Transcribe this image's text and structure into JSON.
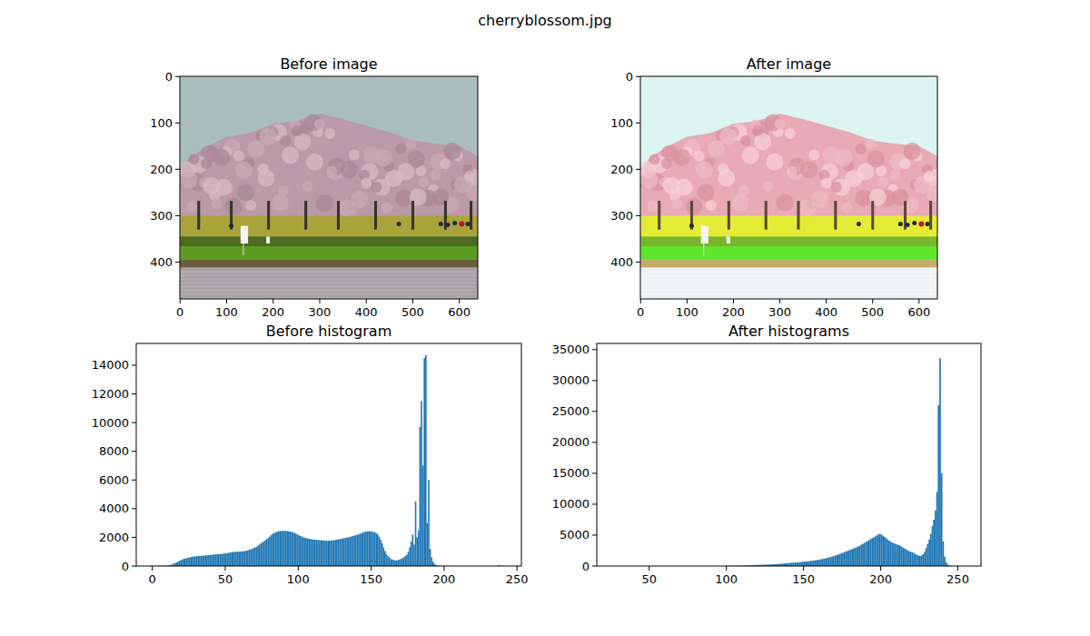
{
  "title": "cherryblossom.jpg",
  "chart_data": [
    {
      "type": "image",
      "title": "Before image",
      "xlim": [
        -0.5,
        639.5
      ],
      "ylim": [
        479.5,
        -0.5
      ],
      "xticks": [
        0,
        100,
        200,
        300,
        400,
        500,
        600
      ],
      "yticks": [
        0,
        100,
        200,
        300,
        400
      ]
    },
    {
      "type": "image",
      "title": "After image",
      "xlim": [
        -0.5,
        639.5
      ],
      "ylim": [
        479.5,
        -0.5
      ],
      "xticks": [
        0,
        100,
        200,
        300,
        400,
        500,
        600
      ],
      "yticks": [
        0,
        100,
        200,
        300,
        400
      ]
    },
    {
      "type": "histogram",
      "title": "Before histogram",
      "color": "#1f77b4",
      "xlim": [
        -11,
        253
      ],
      "ylim": [
        0,
        15520
      ],
      "xticks": [
        0,
        50,
        100,
        150,
        200,
        250
      ],
      "yticks": [
        0,
        2000,
        4000,
        6000,
        8000,
        10000,
        12000,
        14000
      ],
      "bins": [
        0,
        1,
        2,
        3,
        4,
        5,
        6,
        7,
        8,
        9,
        10,
        11,
        12,
        13,
        14,
        15,
        16,
        17,
        18,
        19,
        20,
        21,
        22,
        23,
        24,
        25,
        26,
        27,
        28,
        29,
        30,
        31,
        32,
        33,
        34,
        35,
        36,
        37,
        38,
        39,
        40,
        41,
        42,
        43,
        44,
        45,
        46,
        47,
        48,
        49,
        50,
        51,
        52,
        53,
        54,
        55,
        56,
        57,
        58,
        59,
        60,
        61,
        62,
        63,
        64,
        65,
        66,
        67,
        68,
        69,
        70,
        71,
        72,
        73,
        74,
        75,
        76,
        77,
        78,
        79,
        80,
        81,
        82,
        83,
        84,
        85,
        86,
        87,
        88,
        89,
        90,
        91,
        92,
        93,
        94,
        95,
        96,
        97,
        98,
        99,
        100,
        101,
        102,
        103,
        104,
        105,
        106,
        107,
        108,
        109,
        110,
        111,
        112,
        113,
        114,
        115,
        116,
        117,
        118,
        119,
        120,
        121,
        122,
        123,
        124,
        125,
        126,
        127,
        128,
        129,
        130,
        131,
        132,
        133,
        134,
        135,
        136,
        137,
        138,
        139,
        140,
        141,
        142,
        143,
        144,
        145,
        146,
        147,
        148,
        149,
        150,
        151,
        152,
        153,
        154,
        155,
        156,
        157,
        158,
        159,
        160,
        161,
        162,
        163,
        164,
        165,
        166,
        167,
        168,
        169,
        170,
        171,
        172,
        173,
        174,
        175,
        176,
        177,
        178,
        179,
        180,
        181,
        182,
        183,
        184,
        185,
        186,
        187,
        188,
        189,
        190,
        191,
        192,
        193,
        194,
        195,
        196,
        197,
        198,
        199,
        200,
        201,
        202,
        203,
        204,
        205,
        206,
        207,
        208,
        209,
        210,
        211,
        212,
        213,
        214,
        215,
        216,
        217,
        218,
        219,
        220,
        221,
        222,
        223,
        224,
        225,
        226,
        227,
        228,
        229,
        230,
        231,
        232,
        233,
        234,
        235,
        236,
        237,
        238,
        239,
        240,
        241
      ],
      "values": [
        0,
        0,
        0,
        0,
        5,
        10,
        10,
        15,
        20,
        20,
        30,
        50,
        80,
        100,
        150,
        200,
        250,
        300,
        350,
        400,
        450,
        500,
        520,
        550,
        580,
        600,
        620,
        650,
        670,
        680,
        690,
        700,
        700,
        710,
        720,
        730,
        740,
        750,
        760,
        770,
        780,
        790,
        800,
        810,
        820,
        830,
        840,
        850,
        860,
        870,
        880,
        900,
        920,
        940,
        960,
        980,
        990,
        1000,
        1000,
        1000,
        1010,
        1020,
        1030,
        1050,
        1070,
        1100,
        1130,
        1160,
        1200,
        1250,
        1300,
        1350,
        1420,
        1500,
        1580,
        1650,
        1720,
        1800,
        1880,
        1950,
        2050,
        2150,
        2250,
        2300,
        2350,
        2400,
        2420,
        2440,
        2450,
        2450,
        2460,
        2450,
        2440,
        2420,
        2400,
        2380,
        2350,
        2300,
        2250,
        2200,
        2150,
        2100,
        2050,
        2000,
        1980,
        1950,
        1930,
        1900,
        1880,
        1860,
        1850,
        1840,
        1830,
        1820,
        1810,
        1800,
        1790,
        1780,
        1770,
        1760,
        1760,
        1770,
        1780,
        1790,
        1800,
        1820,
        1840,
        1860,
        1880,
        1900,
        1920,
        1940,
        1960,
        1980,
        2000,
        2030,
        2060,
        2090,
        2120,
        2150,
        2180,
        2210,
        2250,
        2300,
        2350,
        2380,
        2400,
        2420,
        2430,
        2420,
        2400,
        2380,
        2350,
        2300,
        2200,
        2050,
        1850,
        1600,
        1300,
        1050,
        850,
        700,
        600,
        500,
        450,
        420,
        400,
        400,
        420,
        450,
        500,
        550,
        600,
        700,
        800,
        1000,
        1300,
        1700,
        2200,
        1500,
        4500,
        2000,
        2500,
        9700,
        11500,
        7000,
        14500,
        14700,
        3000,
        6000,
        1200,
        600,
        300,
        150,
        80,
        40,
        20,
        10,
        5,
        0,
        0,
        0,
        0,
        0,
        0,
        0,
        0,
        0,
        0,
        0,
        0,
        0,
        0,
        0,
        0,
        0,
        0,
        0,
        0,
        0,
        0,
        0,
        0,
        0,
        0,
        0,
        0,
        0,
        0,
        0,
        0,
        0,
        0,
        0,
        0,
        0,
        0,
        80,
        0,
        0,
        0
      ]
    },
    {
      "type": "histogram",
      "title": "After histograms",
      "color": "#1f77b4",
      "xlim": [
        16,
        265
      ],
      "ylim": [
        0,
        36000
      ],
      "xticks": [
        50,
        100,
        150,
        200,
        250
      ],
      "yticks": [
        0,
        5000,
        10000,
        15000,
        20000,
        25000,
        30000,
        35000
      ],
      "bins": [
        27,
        28,
        29,
        30,
        31,
        32,
        33,
        34,
        35,
        36,
        37,
        38,
        39,
        40,
        41,
        42,
        43,
        44,
        45,
        46,
        47,
        48,
        49,
        50,
        51,
        52,
        53,
        54,
        55,
        56,
        57,
        58,
        59,
        60,
        61,
        62,
        63,
        64,
        65,
        66,
        67,
        68,
        69,
        70,
        71,
        72,
        73,
        74,
        75,
        76,
        77,
        78,
        79,
        80,
        81,
        82,
        83,
        84,
        85,
        86,
        87,
        88,
        89,
        90,
        91,
        92,
        93,
        94,
        95,
        96,
        97,
        98,
        99,
        100,
        101,
        102,
        103,
        104,
        105,
        106,
        107,
        108,
        109,
        110,
        111,
        112,
        113,
        114,
        115,
        116,
        117,
        118,
        119,
        120,
        121,
        122,
        123,
        124,
        125,
        126,
        127,
        128,
        129,
        130,
        131,
        132,
        133,
        134,
        135,
        136,
        137,
        138,
        139,
        140,
        141,
        142,
        143,
        144,
        145,
        146,
        147,
        148,
        149,
        150,
        151,
        152,
        153,
        154,
        155,
        156,
        157,
        158,
        159,
        160,
        161,
        162,
        163,
        164,
        165,
        166,
        167,
        168,
        169,
        170,
        171,
        172,
        173,
        174,
        175,
        176,
        177,
        178,
        179,
        180,
        181,
        182,
        183,
        184,
        185,
        186,
        187,
        188,
        189,
        190,
        191,
        192,
        193,
        194,
        195,
        196,
        197,
        198,
        199,
        200,
        201,
        202,
        203,
        204,
        205,
        206,
        207,
        208,
        209,
        210,
        211,
        212,
        213,
        214,
        215,
        216,
        217,
        218,
        219,
        220,
        221,
        222,
        223,
        224,
        225,
        226,
        227,
        228,
        229,
        230,
        231,
        232,
        233,
        234,
        235,
        236,
        237,
        238,
        239,
        240,
        241,
        242,
        243,
        244,
        245,
        246,
        247,
        248,
        249,
        250,
        251,
        252,
        253
      ],
      "values": [
        5,
        0,
        0,
        0,
        0,
        0,
        0,
        0,
        0,
        0,
        0,
        0,
        0,
        0,
        0,
        0,
        0,
        0,
        10,
        0,
        0,
        0,
        0,
        0,
        0,
        0,
        0,
        0,
        0,
        0,
        0,
        0,
        0,
        10,
        0,
        0,
        0,
        0,
        0,
        0,
        0,
        0,
        0,
        0,
        0,
        0,
        0,
        0,
        10,
        0,
        0,
        0,
        0,
        0,
        0,
        0,
        0,
        0,
        15,
        0,
        0,
        0,
        0,
        0,
        0,
        0,
        0,
        0,
        15,
        0,
        0,
        0,
        0,
        20,
        25,
        30,
        35,
        40,
        45,
        50,
        55,
        60,
        70,
        80,
        90,
        100,
        110,
        120,
        130,
        140,
        150,
        160,
        170,
        180,
        190,
        200,
        210,
        220,
        230,
        240,
        250,
        260,
        270,
        280,
        300,
        320,
        340,
        360,
        380,
        400,
        420,
        440,
        460,
        480,
        500,
        520,
        540,
        560,
        580,
        600,
        620,
        650,
        680,
        700,
        730,
        760,
        790,
        820,
        850,
        880,
        920,
        960,
        1000,
        1050,
        1100,
        1150,
        1200,
        1260,
        1320,
        1380,
        1450,
        1520,
        1600,
        1680,
        1760,
        1850,
        1950,
        2050,
        2150,
        2250,
        2350,
        2450,
        2550,
        2650,
        2750,
        2850,
        2950,
        3050,
        3150,
        3300,
        3450,
        3600,
        3750,
        3900,
        4050,
        4200,
        4350,
        4500,
        4650,
        4800,
        4950,
        5100,
        5200,
        5100,
        4900,
        4700,
        4500,
        4300,
        4100,
        3900,
        3800,
        3700,
        3600,
        3500,
        3400,
        3300,
        3150,
        3000,
        2850,
        2700,
        2550,
        2400,
        2300,
        2250,
        2100,
        1950,
        1800,
        1700,
        1650,
        1700,
        1900,
        2300,
        2900,
        3600,
        4300,
        5200,
        6500,
        7500,
        9000,
        12000,
        26000,
        33600,
        15000,
        4000,
        1500,
        600,
        250,
        100,
        50,
        20,
        10,
        5,
        0,
        0,
        0,
        0
      ]
    }
  ]
}
